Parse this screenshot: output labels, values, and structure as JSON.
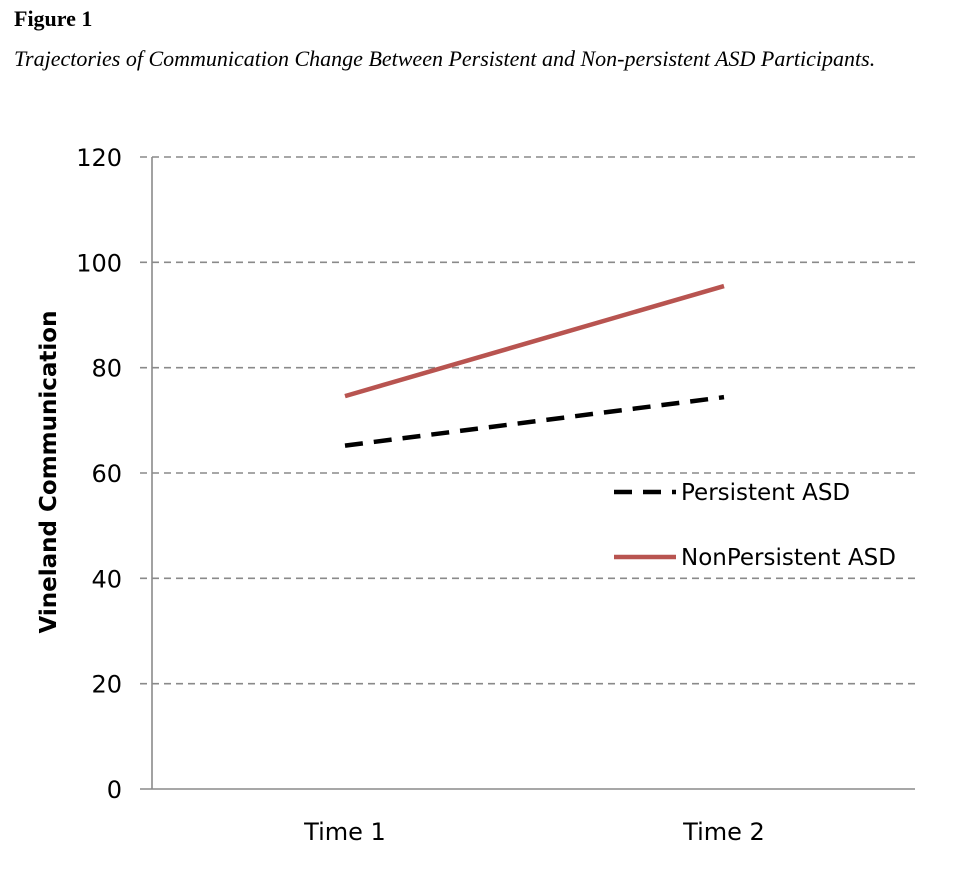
{
  "figure": {
    "label": "Figure 1",
    "caption": "Trajectories of Communication Change Between Persistent and Non-persistent ASD Participants."
  },
  "chart_data": {
    "type": "line",
    "categories": [
      "Time 1",
      "Time 2"
    ],
    "ylabel": "Vineland Communication",
    "ylim": [
      0,
      120
    ],
    "yticks": [
      0,
      20,
      40,
      60,
      80,
      100,
      120
    ],
    "grid": true,
    "legend": "right",
    "series": [
      {
        "name": "Persistent ASD",
        "values": [
          65.2,
          74.4
        ],
        "color": "#000000",
        "dash": "dashed"
      },
      {
        "name": "NonPersistent ASD",
        "values": [
          74.6,
          95.5
        ],
        "color": "#b85450",
        "dash": "solid"
      }
    ]
  }
}
